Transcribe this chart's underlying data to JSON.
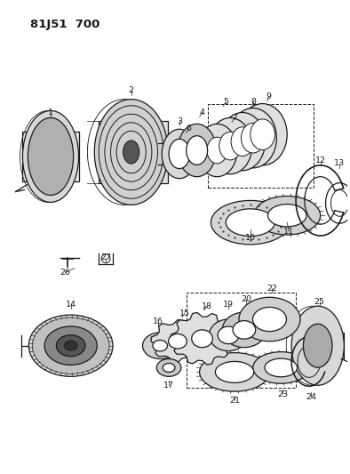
{
  "title": "81J51 700",
  "bg_color": "#ffffff",
  "line_color": "#1a1a1a",
  "title_fontsize": 10,
  "title_fontweight": "bold",
  "fig_width": 3.94,
  "fig_height": 5.33,
  "dpi": 100
}
